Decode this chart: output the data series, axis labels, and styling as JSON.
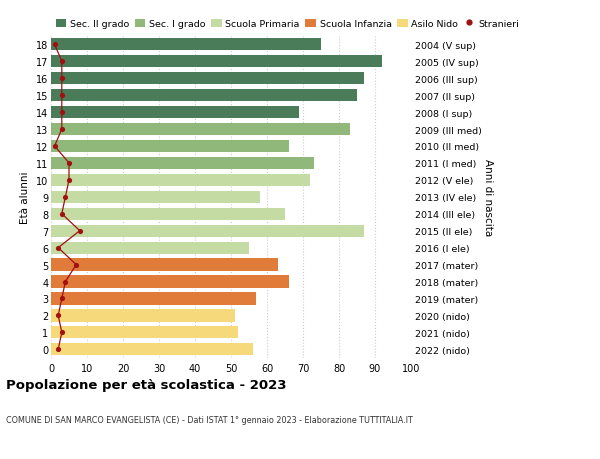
{
  "ages": [
    18,
    17,
    16,
    15,
    14,
    13,
    12,
    11,
    10,
    9,
    8,
    7,
    6,
    5,
    4,
    3,
    2,
    1,
    0
  ],
  "bar_values": [
    75,
    92,
    87,
    85,
    69,
    83,
    66,
    73,
    72,
    58,
    65,
    87,
    55,
    63,
    66,
    57,
    51,
    52,
    56
  ],
  "anni_nascita": [
    "2004 (V sup)",
    "2005 (IV sup)",
    "2006 (III sup)",
    "2007 (II sup)",
    "2008 (I sup)",
    "2009 (III med)",
    "2010 (II med)",
    "2011 (I med)",
    "2012 (V ele)",
    "2013 (IV ele)",
    "2014 (III ele)",
    "2015 (II ele)",
    "2016 (I ele)",
    "2017 (mater)",
    "2018 (mater)",
    "2019 (mater)",
    "2020 (nido)",
    "2021 (nido)",
    "2022 (nido)"
  ],
  "bar_colors": [
    "#4a7c59",
    "#4a7c59",
    "#4a7c59",
    "#4a7c59",
    "#4a7c59",
    "#8fb87a",
    "#8fb87a",
    "#8fb87a",
    "#c5dba4",
    "#c5dba4",
    "#c5dba4",
    "#c5dba4",
    "#c5dba4",
    "#e07b39",
    "#e07b39",
    "#e07b39",
    "#f5d97a",
    "#f5d97a",
    "#f5d97a"
  ],
  "stranieri_values": [
    1,
    3,
    3,
    3,
    3,
    3,
    1,
    5,
    5,
    4,
    3,
    8,
    2,
    7,
    4,
    3,
    2,
    3,
    2
  ],
  "legend_labels": [
    "Sec. II grado",
    "Sec. I grado",
    "Scuola Primaria",
    "Scuola Infanzia",
    "Asilo Nido",
    "Stranieri"
  ],
  "legend_colors": [
    "#4a7c59",
    "#8fb87a",
    "#c5dba4",
    "#e07b39",
    "#f5d97a",
    "#a01010"
  ],
  "title": "Popolazione per età scolastica - 2023",
  "subtitle": "COMUNE DI SAN MARCO EVANGELISTA (CE) - Dati ISTAT 1° gennaio 2023 - Elaborazione TUTTITALIA.IT",
  "ylabel_left": "Età alunni",
  "ylabel_right": "Anni di nascita",
  "xlim": [
    0,
    100
  ],
  "xticks": [
    0,
    10,
    20,
    30,
    40,
    50,
    60,
    70,
    80,
    90,
    100
  ],
  "background_color": "#ffffff",
  "bar_height": 0.72,
  "grid_color": "#cccccc",
  "grid_linestyle": "dotted"
}
